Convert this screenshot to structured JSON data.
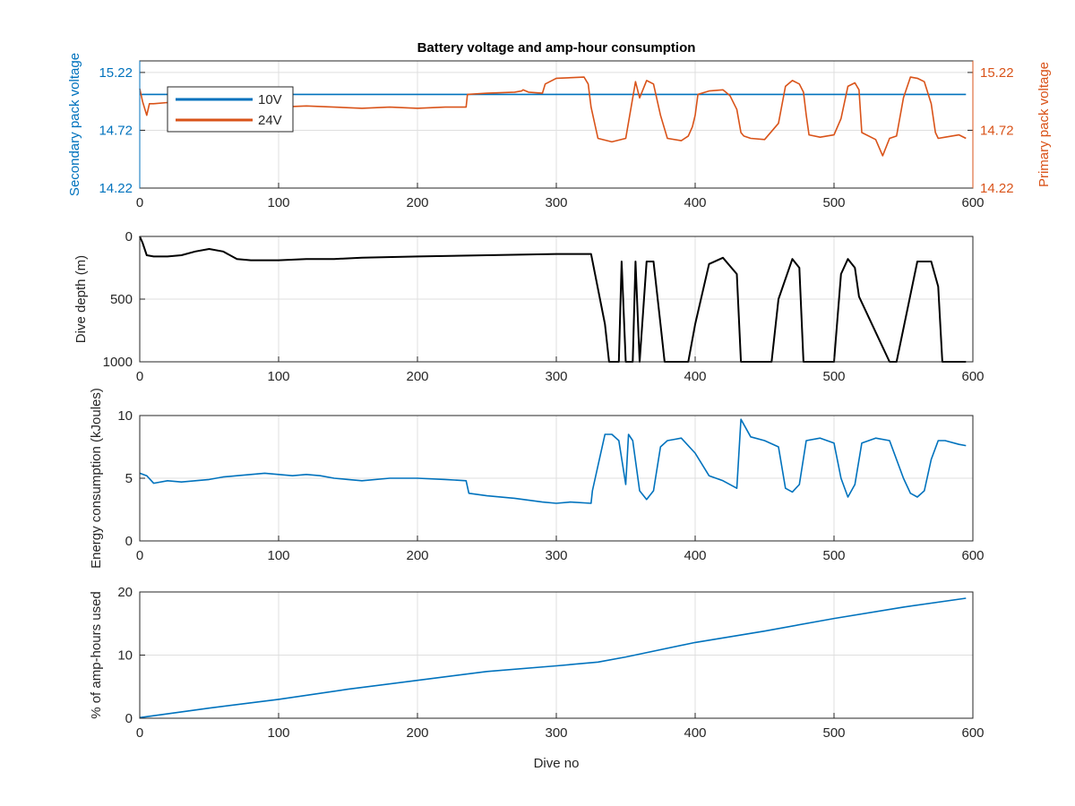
{
  "chart_data": [
    {
      "type": "line",
      "title": "Battery voltage and amp-hour consumption",
      "xlabel": "",
      "xlim": [
        0,
        600
      ],
      "xticks": [
        0,
        100,
        200,
        300,
        400,
        500,
        600
      ],
      "left_axis": {
        "label": "Secondary pack voltage",
        "ylim": [
          14.22,
          15.32
        ],
        "ticks": [
          "14.22",
          "14.72",
          "15.22"
        ],
        "color": "#0072BD"
      },
      "right_axis": {
        "label": "Primary pack voltage",
        "ylim": [
          14.22,
          15.32
        ],
        "ticks": [
          "14.22",
          "14.72",
          "15.22"
        ],
        "color": "#D95319"
      },
      "legend": {
        "position": "top-left",
        "entries": [
          "10V",
          "24V"
        ]
      },
      "grid": true,
      "series": [
        {
          "name": "10V",
          "color": "#0072BD",
          "axis": "left",
          "x": [
            0,
            595
          ],
          "y": [
            15.03,
            15.03
          ]
        },
        {
          "name": "24V",
          "color": "#D95319",
          "axis": "right",
          "x": [
            0,
            2,
            5,
            7,
            10,
            20,
            40,
            60,
            80,
            100,
            120,
            140,
            160,
            180,
            200,
            220,
            235,
            236,
            250,
            270,
            275,
            276,
            280,
            290,
            292,
            300,
            320,
            323,
            325,
            330,
            340,
            350,
            355,
            357,
            360,
            365,
            370,
            375,
            380,
            390,
            395,
            398,
            400,
            402,
            410,
            420,
            425,
            430,
            433,
            435,
            440,
            450,
            460,
            465,
            470,
            475,
            478,
            480,
            482,
            490,
            500,
            505,
            510,
            515,
            518,
            520,
            530,
            535,
            540,
            545,
            550,
            555,
            560,
            565,
            570,
            573,
            575,
            580,
            590,
            595
          ],
          "y": [
            15.08,
            14.97,
            14.85,
            14.95,
            14.95,
            14.96,
            14.95,
            14.94,
            14.93,
            14.92,
            14.93,
            14.92,
            14.91,
            14.92,
            14.91,
            14.92,
            14.92,
            15.03,
            15.04,
            15.05,
            15.06,
            15.07,
            15.05,
            15.04,
            15.12,
            15.17,
            15.18,
            15.12,
            14.92,
            14.65,
            14.62,
            14.65,
            15.0,
            15.14,
            15.0,
            15.15,
            15.12,
            14.85,
            14.65,
            14.63,
            14.67,
            14.75,
            14.85,
            15.03,
            15.06,
            15.07,
            15.02,
            14.9,
            14.7,
            14.67,
            14.65,
            14.64,
            14.78,
            15.1,
            15.15,
            15.12,
            15.05,
            14.85,
            14.68,
            14.66,
            14.68,
            14.82,
            15.1,
            15.13,
            15.07,
            14.7,
            14.64,
            14.5,
            14.65,
            14.67,
            15.0,
            15.18,
            15.17,
            15.14,
            14.95,
            14.7,
            14.65,
            14.66,
            14.68,
            14.65
          ]
        }
      ]
    },
    {
      "type": "line",
      "title": "",
      "xlabel": "",
      "ylabel": "Dive depth (m)",
      "xlim": [
        0,
        600
      ],
      "ylim": [
        0,
        1000
      ],
      "y_reversed": true,
      "xticks": [
        0,
        100,
        200,
        300,
        400,
        500,
        600
      ],
      "yticks": [
        0,
        500,
        1000
      ],
      "grid": true,
      "series": [
        {
          "color": "#000000",
          "x": [
            0,
            2,
            5,
            10,
            20,
            30,
            40,
            50,
            60,
            70,
            80,
            100,
            120,
            140,
            160,
            200,
            250,
            300,
            325,
            335,
            338,
            345,
            347,
            350,
            355,
            357,
            360,
            365,
            370,
            375,
            378,
            395,
            400,
            410,
            420,
            430,
            433,
            455,
            460,
            470,
            475,
            478,
            500,
            505,
            510,
            515,
            518,
            540,
            545,
            560,
            570,
            575,
            578,
            595
          ],
          "y": [
            0,
            50,
            150,
            160,
            160,
            150,
            120,
            100,
            120,
            180,
            190,
            190,
            180,
            180,
            170,
            160,
            150,
            140,
            140,
            700,
            1000,
            1000,
            200,
            1000,
            1000,
            200,
            1000,
            200,
            200,
            700,
            1000,
            1000,
            700,
            220,
            170,
            300,
            1000,
            1000,
            500,
            180,
            250,
            1000,
            1000,
            300,
            180,
            250,
            480,
            1000,
            1000,
            200,
            200,
            400,
            1000,
            1000
          ]
        }
      ]
    },
    {
      "type": "line",
      "title": "",
      "xlabel": "",
      "ylabel": "Energy consumption (kJoules)",
      "xlim": [
        0,
        600
      ],
      "ylim": [
        0,
        10
      ],
      "xticks": [
        0,
        100,
        200,
        300,
        400,
        500,
        600
      ],
      "yticks": [
        0,
        5,
        10
      ],
      "grid": true,
      "series": [
        {
          "color": "#0072BD",
          "x": [
            0,
            5,
            10,
            20,
            30,
            40,
            50,
            60,
            70,
            80,
            90,
            100,
            110,
            120,
            130,
            140,
            150,
            160,
            180,
            200,
            220,
            235,
            237,
            250,
            270,
            290,
            300,
            310,
            325,
            326,
            330,
            335,
            340,
            345,
            350,
            352,
            355,
            360,
            365,
            370,
            375,
            380,
            385,
            390,
            400,
            410,
            420,
            430,
            433,
            440,
            450,
            460,
            465,
            470,
            475,
            480,
            490,
            500,
            505,
            510,
            515,
            520,
            530,
            540,
            550,
            555,
            560,
            565,
            570,
            575,
            580,
            590,
            595
          ],
          "y": [
            5.4,
            5.2,
            4.6,
            4.8,
            4.7,
            4.8,
            4.9,
            5.1,
            5.2,
            5.3,
            5.4,
            5.3,
            5.2,
            5.3,
            5.2,
            5.0,
            4.9,
            4.8,
            5.0,
            5.0,
            4.9,
            4.8,
            3.8,
            3.6,
            3.4,
            3.1,
            3.0,
            3.1,
            3.0,
            4.0,
            6.0,
            8.5,
            8.5,
            8.0,
            4.5,
            8.5,
            8.0,
            4.0,
            3.3,
            4.0,
            7.5,
            8.0,
            8.1,
            8.2,
            7.0,
            5.2,
            4.8,
            4.2,
            9.7,
            8.3,
            8.0,
            7.5,
            4.2,
            3.9,
            4.5,
            8.0,
            8.2,
            7.8,
            5.0,
            3.5,
            4.5,
            7.8,
            8.2,
            8.0,
            5.0,
            3.8,
            3.5,
            4.0,
            6.5,
            8.0,
            8.0,
            7.7,
            7.6
          ]
        }
      ]
    },
    {
      "type": "line",
      "title": "",
      "xlabel": "Dive no",
      "ylabel": "% of amp-hours used",
      "xlim": [
        0,
        600
      ],
      "ylim": [
        0,
        20
      ],
      "xticks": [
        0,
        100,
        200,
        300,
        400,
        500,
        600
      ],
      "yticks": [
        0,
        10,
        20
      ],
      "grid": true,
      "series": [
        {
          "color": "#0072BD",
          "x": [
            0,
            50,
            100,
            150,
            200,
            250,
            300,
            330,
            350,
            400,
            450,
            500,
            550,
            595
          ],
          "y": [
            0.1,
            1.6,
            3.0,
            4.6,
            6.0,
            7.4,
            8.3,
            8.9,
            9.7,
            12.0,
            13.8,
            15.8,
            17.6,
            19.0
          ]
        }
      ]
    }
  ]
}
